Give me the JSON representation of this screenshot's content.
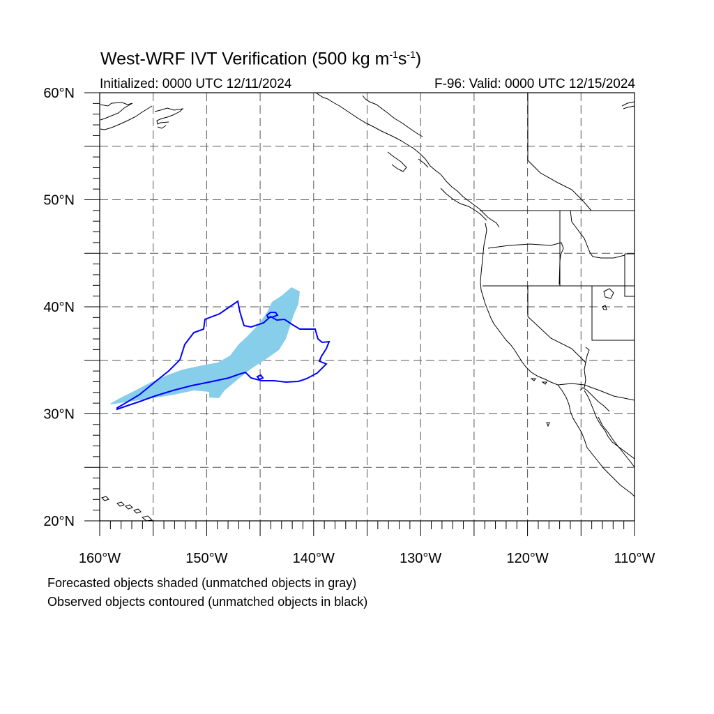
{
  "title": {
    "main": "West-WRF IVT Verification (500 kg m",
    "sup1": "-1",
    "mid": "s",
    "sup2": "-1",
    "end": ")"
  },
  "initialized": "Initialized: 0000 UTC 12/11/2024",
  "valid": "F-96: Valid: 0000 UTC 12/15/2024",
  "lat_labels": [
    {
      "text": "60°N",
      "lat": 60
    },
    {
      "text": "50°N",
      "lat": 50
    },
    {
      "text": "40°N",
      "lat": 40
    },
    {
      "text": "30°N",
      "lat": 30
    },
    {
      "text": "20°N",
      "lat": 20
    }
  ],
  "lon_labels": [
    {
      "text": "160°W",
      "lon": -160
    },
    {
      "text": "150°W",
      "lon": -150
    },
    {
      "text": "140°W",
      "lon": -140
    },
    {
      "text": "130°W",
      "lon": -130
    },
    {
      "text": "120°W",
      "lon": -120
    },
    {
      "text": "110°W",
      "lon": -110
    }
  ],
  "extent": {
    "lon_min": -160,
    "lon_max": -110,
    "lat_min": 20,
    "lat_max": 60
  },
  "colors": {
    "forecast_fill": "#87ceeb",
    "observed_contour": "#0000ff",
    "coast": "#000000",
    "grid": "#555555"
  },
  "notes": [
    "Forecasted objects shaded (unmatched objects in gray)",
    "Observed objects contoured (unmatched objects in black)"
  ]
}
